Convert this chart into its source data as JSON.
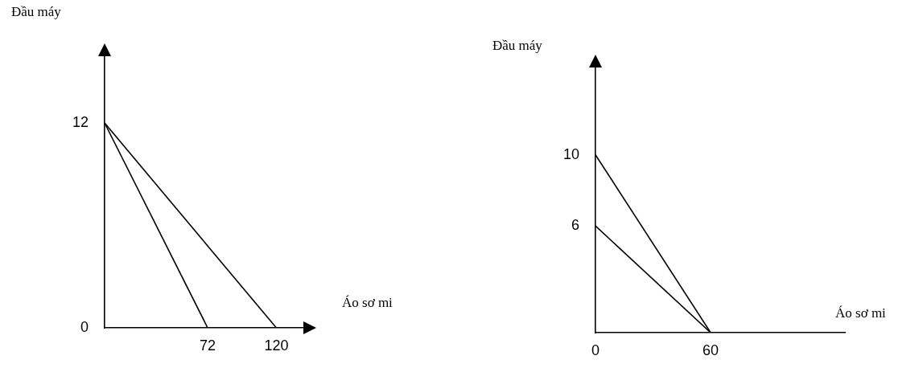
{
  "chart_data": [
    {
      "type": "line",
      "xlabel": "Áo sơ mi",
      "ylabel": "Đầu máy",
      "xlim": [
        0,
        140
      ],
      "ylim": [
        0,
        16
      ],
      "xticks": [
        72,
        120
      ],
      "yticks": [
        0,
        12
      ],
      "grid": false,
      "legend": false,
      "marker": "none",
      "series": [
        {
          "color": "#000000",
          "x": [
            0,
            72
          ],
          "values": [
            12,
            0
          ]
        },
        {
          "color": "#000000",
          "x": [
            0,
            120
          ],
          "values": [
            12,
            0
          ]
        }
      ]
    },
    {
      "type": "line",
      "xlabel": "Áo sơ mi",
      "ylabel": "Đầu máy",
      "xlim": [
        0,
        130
      ],
      "ylim": [
        0,
        15
      ],
      "xticks": [
        0,
        60
      ],
      "yticks": [
        6,
        10
      ],
      "grid": false,
      "legend": false,
      "marker": "none",
      "series": [
        {
          "color": "#000000",
          "x": [
            0,
            60
          ],
          "values": [
            10,
            0
          ]
        },
        {
          "color": "#000000",
          "x": [
            0,
            60
          ],
          "values": [
            6,
            0
          ]
        }
      ]
    }
  ]
}
